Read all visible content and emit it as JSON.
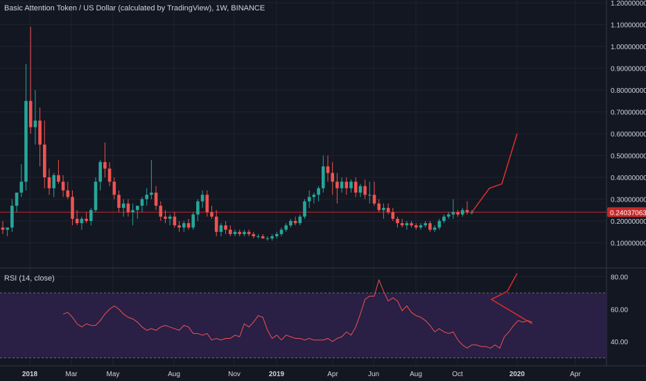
{
  "chart_title": "Basic Attention Token / US Dollar (calculated by TradingView), 1W, BINANCE",
  "current_price_label": "0.24037063",
  "colors": {
    "up": "#26a69a",
    "down": "#ef5350",
    "projection": "#e0302a",
    "rsi_line": "#ef5350",
    "rsi_band": "#2a1f45",
    "background": "#131722",
    "grid": "#1f2330",
    "price_line": "#c62828",
    "axis_text": "#d1d4dc"
  },
  "chart_data": [
    {
      "type": "candlestick",
      "title": "Basic Attention Token / US Dollar (calculated by TradingView), 1W, BINANCE",
      "price_axis": {
        "ticks": [
          "0.10000000",
          "0.20000000",
          "0.30000000",
          "0.40000000",
          "0.50000000",
          "0.60000000",
          "0.70000000",
          "0.80000000",
          "0.90000000",
          "1.00000000",
          "1.10000000",
          "1.20000000"
        ],
        "ylim": [
          0.0,
          1.2
        ]
      },
      "x_axis": {
        "ticks": [
          "2018",
          "Mar",
          "May",
          "Aug",
          "Nov",
          "2019",
          "Apr",
          "Jun",
          "Aug",
          "Oct",
          "2020",
          "Apr"
        ]
      },
      "current_price": 0.24037063,
      "candles": [
        {
          "o": 0.17,
          "h": 0.2,
          "l": 0.14,
          "c": 0.16
        },
        {
          "o": 0.16,
          "h": 0.17,
          "l": 0.13,
          "c": 0.17
        },
        {
          "o": 0.17,
          "h": 0.3,
          "l": 0.15,
          "c": 0.27
        },
        {
          "o": 0.27,
          "h": 0.33,
          "l": 0.24,
          "c": 0.33
        },
        {
          "o": 0.33,
          "h": 0.46,
          "l": 0.31,
          "c": 0.38
        },
        {
          "o": 0.38,
          "h": 0.92,
          "l": 0.34,
          "c": 0.75
        },
        {
          "o": 0.75,
          "h": 1.09,
          "l": 0.6,
          "c": 0.63
        },
        {
          "o": 0.63,
          "h": 0.8,
          "l": 0.55,
          "c": 0.66
        },
        {
          "o": 0.66,
          "h": 0.72,
          "l": 0.45,
          "c": 0.55
        },
        {
          "o": 0.55,
          "h": 0.66,
          "l": 0.35,
          "c": 0.4
        },
        {
          "o": 0.4,
          "h": 0.44,
          "l": 0.32,
          "c": 0.35
        },
        {
          "o": 0.35,
          "h": 0.42,
          "l": 0.31,
          "c": 0.41
        },
        {
          "o": 0.41,
          "h": 0.48,
          "l": 0.37,
          "c": 0.38
        },
        {
          "o": 0.38,
          "h": 0.41,
          "l": 0.31,
          "c": 0.34
        },
        {
          "o": 0.34,
          "h": 0.38,
          "l": 0.3,
          "c": 0.31
        },
        {
          "o": 0.31,
          "h": 0.34,
          "l": 0.18,
          "c": 0.21
        },
        {
          "o": 0.21,
          "h": 0.25,
          "l": 0.18,
          "c": 0.19
        },
        {
          "o": 0.19,
          "h": 0.22,
          "l": 0.16,
          "c": 0.21
        },
        {
          "o": 0.21,
          "h": 0.24,
          "l": 0.19,
          "c": 0.2
        },
        {
          "o": 0.2,
          "h": 0.26,
          "l": 0.18,
          "c": 0.25
        },
        {
          "o": 0.25,
          "h": 0.4,
          "l": 0.24,
          "c": 0.38
        },
        {
          "o": 0.38,
          "h": 0.48,
          "l": 0.34,
          "c": 0.47
        },
        {
          "o": 0.47,
          "h": 0.56,
          "l": 0.4,
          "c": 0.44
        },
        {
          "o": 0.44,
          "h": 0.47,
          "l": 0.36,
          "c": 0.38
        },
        {
          "o": 0.38,
          "h": 0.4,
          "l": 0.3,
          "c": 0.32
        },
        {
          "o": 0.32,
          "h": 0.34,
          "l": 0.24,
          "c": 0.26
        },
        {
          "o": 0.26,
          "h": 0.3,
          "l": 0.22,
          "c": 0.28
        },
        {
          "o": 0.28,
          "h": 0.3,
          "l": 0.22,
          "c": 0.24
        },
        {
          "o": 0.24,
          "h": 0.28,
          "l": 0.18,
          "c": 0.25
        },
        {
          "o": 0.25,
          "h": 0.27,
          "l": 0.21,
          "c": 0.27
        },
        {
          "o": 0.27,
          "h": 0.31,
          "l": 0.24,
          "c": 0.3
        },
        {
          "o": 0.3,
          "h": 0.35,
          "l": 0.27,
          "c": 0.32
        },
        {
          "o": 0.32,
          "h": 0.48,
          "l": 0.3,
          "c": 0.33
        },
        {
          "o": 0.33,
          "h": 0.36,
          "l": 0.25,
          "c": 0.27
        },
        {
          "o": 0.27,
          "h": 0.29,
          "l": 0.2,
          "c": 0.22
        },
        {
          "o": 0.22,
          "h": 0.25,
          "l": 0.19,
          "c": 0.21
        },
        {
          "o": 0.21,
          "h": 0.23,
          "l": 0.18,
          "c": 0.22
        },
        {
          "o": 0.22,
          "h": 0.24,
          "l": 0.17,
          "c": 0.18
        },
        {
          "o": 0.18,
          "h": 0.2,
          "l": 0.15,
          "c": 0.17
        },
        {
          "o": 0.17,
          "h": 0.2,
          "l": 0.15,
          "c": 0.19
        },
        {
          "o": 0.19,
          "h": 0.21,
          "l": 0.16,
          "c": 0.17
        },
        {
          "o": 0.17,
          "h": 0.24,
          "l": 0.16,
          "c": 0.23
        },
        {
          "o": 0.23,
          "h": 0.3,
          "l": 0.2,
          "c": 0.29
        },
        {
          "o": 0.29,
          "h": 0.34,
          "l": 0.26,
          "c": 0.32
        },
        {
          "o": 0.32,
          "h": 0.34,
          "l": 0.22,
          "c": 0.24
        },
        {
          "o": 0.24,
          "h": 0.27,
          "l": 0.21,
          "c": 0.22
        },
        {
          "o": 0.22,
          "h": 0.25,
          "l": 0.13,
          "c": 0.15
        },
        {
          "o": 0.15,
          "h": 0.19,
          "l": 0.13,
          "c": 0.18
        },
        {
          "o": 0.18,
          "h": 0.2,
          "l": 0.14,
          "c": 0.16
        },
        {
          "o": 0.16,
          "h": 0.18,
          "l": 0.13,
          "c": 0.14
        },
        {
          "o": 0.14,
          "h": 0.16,
          "l": 0.13,
          "c": 0.15
        },
        {
          "o": 0.15,
          "h": 0.16,
          "l": 0.13,
          "c": 0.14
        },
        {
          "o": 0.14,
          "h": 0.16,
          "l": 0.13,
          "c": 0.15
        },
        {
          "o": 0.15,
          "h": 0.16,
          "l": 0.13,
          "c": 0.14
        },
        {
          "o": 0.14,
          "h": 0.15,
          "l": 0.12,
          "c": 0.13
        },
        {
          "o": 0.13,
          "h": 0.14,
          "l": 0.12,
          "c": 0.13
        },
        {
          "o": 0.13,
          "h": 0.14,
          "l": 0.12,
          "c": 0.12
        },
        {
          "o": 0.12,
          "h": 0.13,
          "l": 0.11,
          "c": 0.12
        },
        {
          "o": 0.12,
          "h": 0.14,
          "l": 0.11,
          "c": 0.13
        },
        {
          "o": 0.13,
          "h": 0.15,
          "l": 0.12,
          "c": 0.14
        },
        {
          "o": 0.14,
          "h": 0.17,
          "l": 0.13,
          "c": 0.16
        },
        {
          "o": 0.16,
          "h": 0.19,
          "l": 0.15,
          "c": 0.18
        },
        {
          "o": 0.18,
          "h": 0.21,
          "l": 0.17,
          "c": 0.2
        },
        {
          "o": 0.2,
          "h": 0.22,
          "l": 0.18,
          "c": 0.19
        },
        {
          "o": 0.19,
          "h": 0.23,
          "l": 0.18,
          "c": 0.22
        },
        {
          "o": 0.22,
          "h": 0.3,
          "l": 0.21,
          "c": 0.29
        },
        {
          "o": 0.29,
          "h": 0.34,
          "l": 0.26,
          "c": 0.31
        },
        {
          "o": 0.31,
          "h": 0.33,
          "l": 0.28,
          "c": 0.32
        },
        {
          "o": 0.32,
          "h": 0.36,
          "l": 0.29,
          "c": 0.35
        },
        {
          "o": 0.35,
          "h": 0.5,
          "l": 0.33,
          "c": 0.45
        },
        {
          "o": 0.45,
          "h": 0.5,
          "l": 0.38,
          "c": 0.42
        },
        {
          "o": 0.42,
          "h": 0.47,
          "l": 0.32,
          "c": 0.38
        },
        {
          "o": 0.38,
          "h": 0.42,
          "l": 0.28,
          "c": 0.35
        },
        {
          "o": 0.35,
          "h": 0.4,
          "l": 0.33,
          "c": 0.38
        },
        {
          "o": 0.38,
          "h": 0.4,
          "l": 0.32,
          "c": 0.35
        },
        {
          "o": 0.35,
          "h": 0.39,
          "l": 0.33,
          "c": 0.38
        },
        {
          "o": 0.38,
          "h": 0.4,
          "l": 0.31,
          "c": 0.33
        },
        {
          "o": 0.33,
          "h": 0.37,
          "l": 0.31,
          "c": 0.36
        },
        {
          "o": 0.36,
          "h": 0.39,
          "l": 0.3,
          "c": 0.32
        },
        {
          "o": 0.32,
          "h": 0.38,
          "l": 0.28,
          "c": 0.32
        },
        {
          "o": 0.32,
          "h": 0.38,
          "l": 0.27,
          "c": 0.28
        },
        {
          "o": 0.28,
          "h": 0.3,
          "l": 0.24,
          "c": 0.25
        },
        {
          "o": 0.25,
          "h": 0.28,
          "l": 0.21,
          "c": 0.26
        },
        {
          "o": 0.26,
          "h": 0.28,
          "l": 0.23,
          "c": 0.24
        },
        {
          "o": 0.24,
          "h": 0.26,
          "l": 0.2,
          "c": 0.21
        },
        {
          "o": 0.21,
          "h": 0.22,
          "l": 0.17,
          "c": 0.19
        },
        {
          "o": 0.19,
          "h": 0.21,
          "l": 0.17,
          "c": 0.18
        },
        {
          "o": 0.18,
          "h": 0.2,
          "l": 0.16,
          "c": 0.19
        },
        {
          "o": 0.19,
          "h": 0.2,
          "l": 0.17,
          "c": 0.18
        },
        {
          "o": 0.18,
          "h": 0.19,
          "l": 0.16,
          "c": 0.17
        },
        {
          "o": 0.17,
          "h": 0.19,
          "l": 0.16,
          "c": 0.18
        },
        {
          "o": 0.18,
          "h": 0.2,
          "l": 0.17,
          "c": 0.19
        },
        {
          "o": 0.19,
          "h": 0.2,
          "l": 0.15,
          "c": 0.16
        },
        {
          "o": 0.16,
          "h": 0.18,
          "l": 0.15,
          "c": 0.17
        },
        {
          "o": 0.17,
          "h": 0.21,
          "l": 0.16,
          "c": 0.2
        },
        {
          "o": 0.2,
          "h": 0.23,
          "l": 0.19,
          "c": 0.22
        },
        {
          "o": 0.22,
          "h": 0.24,
          "l": 0.21,
          "c": 0.23
        },
        {
          "o": 0.23,
          "h": 0.3,
          "l": 0.21,
          "c": 0.24
        },
        {
          "o": 0.24,
          "h": 0.25,
          "l": 0.22,
          "c": 0.23
        },
        {
          "o": 0.23,
          "h": 0.26,
          "l": 0.22,
          "c": 0.25
        },
        {
          "o": 0.25,
          "h": 0.29,
          "l": 0.23,
          "c": 0.24
        },
        {
          "o": 0.24,
          "h": 0.25,
          "l": 0.23,
          "c": 0.24
        }
      ],
      "projection": [
        0.24,
        0.35,
        0.37,
        0.6
      ]
    },
    {
      "type": "line",
      "title": "RSI (14, close)",
      "y_axis": {
        "ticks": [
          "40.00",
          "60.00",
          "80.00"
        ],
        "ylim": [
          26,
          84
        ],
        "band": [
          30,
          70
        ]
      },
      "values": [
        57,
        58,
        55,
        51,
        49,
        51,
        50,
        50,
        53,
        57,
        60,
        62,
        60,
        57,
        55,
        54,
        52,
        49,
        47,
        48,
        47,
        49,
        50,
        49,
        48,
        47,
        50,
        49,
        45,
        45,
        44,
        45,
        41,
        42,
        41,
        42,
        42,
        44,
        43,
        51,
        49,
        52,
        56,
        55,
        47,
        42,
        44,
        41,
        44,
        43,
        42,
        42,
        41,
        42,
        41,
        41,
        41,
        42,
        40,
        42,
        43,
        46,
        44,
        49,
        57,
        66,
        68,
        68,
        78,
        71,
        65,
        67,
        65,
        59,
        62,
        58,
        56,
        55,
        53,
        50,
        46,
        48,
        46,
        45,
        46,
        41,
        38,
        36,
        38,
        38,
        37,
        37,
        36,
        38,
        36,
        43,
        46,
        50,
        53,
        52,
        53,
        52
      ],
      "projection": [
        51,
        66,
        71,
        82
      ]
    }
  ]
}
